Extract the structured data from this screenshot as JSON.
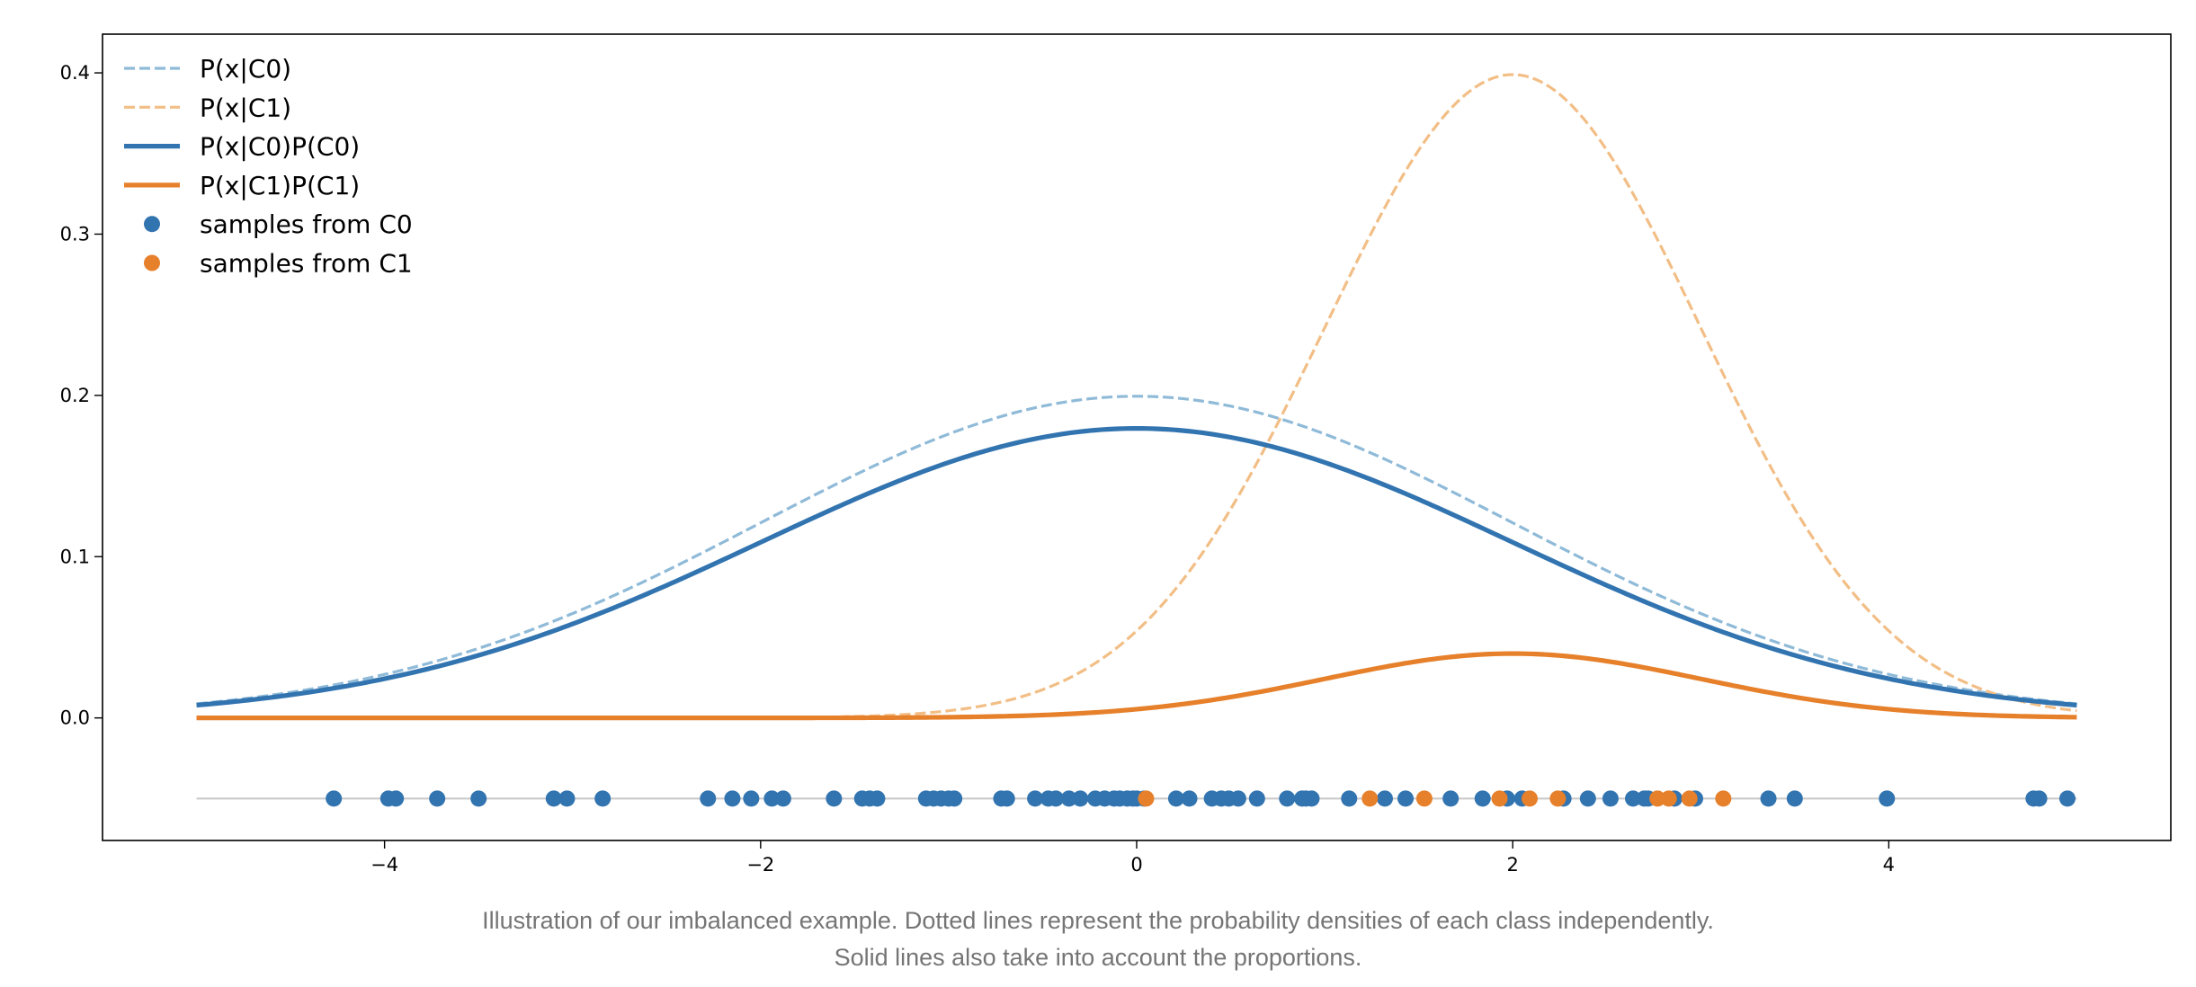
{
  "caption": {
    "line1": "Illustration of our imbalanced example. Dotted lines represent the probability densities of each class independently.",
    "line2": "Solid lines also take into account the proportions."
  },
  "chart_data": {
    "type": "line",
    "title": "",
    "xlabel": "",
    "ylabel": "",
    "xlim": [
      -5.5,
      5.5
    ],
    "ylim": [
      -0.076,
      0.424
    ],
    "x_ticks": [
      -4,
      -2,
      0,
      2,
      4
    ],
    "x_tick_labels": [
      "−4",
      "−2",
      "0",
      "2",
      "4"
    ],
    "y_ticks": [
      0.0,
      0.1,
      0.2,
      0.3,
      0.4
    ],
    "y_tick_labels": [
      "0.0",
      "0.1",
      "0.2",
      "0.3",
      "0.4"
    ],
    "grid": false,
    "legend_position": "upper left",
    "colors": {
      "c0": "#3274b0",
      "c1": "#e6802b",
      "c0_light": "#8fbad8",
      "c1_light": "#f2be86",
      "baseline": "#c8c8c8"
    },
    "x_range": [
      -5,
      5
    ],
    "series": [
      {
        "name": "P(x|C0)",
        "style": "dashed",
        "color": "#8fbad8",
        "kind": "gaussian",
        "mean": 0,
        "std": 2,
        "scale": 1.0
      },
      {
        "name": "P(x|C1)",
        "style": "dashed",
        "color": "#f2be86",
        "kind": "gaussian",
        "mean": 2,
        "std": 1,
        "scale": 1.0
      },
      {
        "name": "P(x|C0)P(C0)",
        "style": "solid",
        "color": "#3274b0",
        "kind": "gaussian",
        "mean": 0,
        "std": 2,
        "scale": 0.9
      },
      {
        "name": "P(x|C1)P(C1)",
        "style": "solid",
        "color": "#e6802b",
        "kind": "gaussian",
        "mean": 2,
        "std": 1,
        "scale": 0.1
      }
    ],
    "samples_y": -0.05,
    "samples": [
      {
        "name": "samples from C0",
        "color": "#3274b0",
        "x": [
          -4.27,
          -3.98,
          -3.94,
          -3.72,
          -3.5,
          -3.1,
          -3.03,
          -2.84,
          -2.28,
          -2.15,
          -2.05,
          -1.94,
          -1.88,
          -1.61,
          -1.46,
          -1.42,
          -1.38,
          -1.12,
          -1.08,
          -1.04,
          -1.0,
          -0.97,
          -0.72,
          -0.69,
          -0.54,
          -0.47,
          -0.43,
          -0.36,
          -0.3,
          -0.22,
          -0.17,
          -0.12,
          -0.09,
          -0.05,
          -0.02,
          0.0,
          0.04,
          0.21,
          0.28,
          0.4,
          0.45,
          0.49,
          0.54,
          0.64,
          0.8,
          0.88,
          0.9,
          0.93,
          1.13,
          1.32,
          1.43,
          1.67,
          1.84,
          1.97,
          2.05,
          2.27,
          2.4,
          2.52,
          2.64,
          2.7,
          2.72,
          2.86,
          2.97,
          3.36,
          3.5,
          3.99,
          4.77,
          4.8,
          4.95
        ]
      },
      {
        "name": "samples from C1",
        "color": "#e6802b",
        "x": [
          0.05,
          1.24,
          1.53,
          1.93,
          2.09,
          2.24,
          2.77,
          2.83,
          2.94,
          3.12
        ]
      }
    ]
  }
}
